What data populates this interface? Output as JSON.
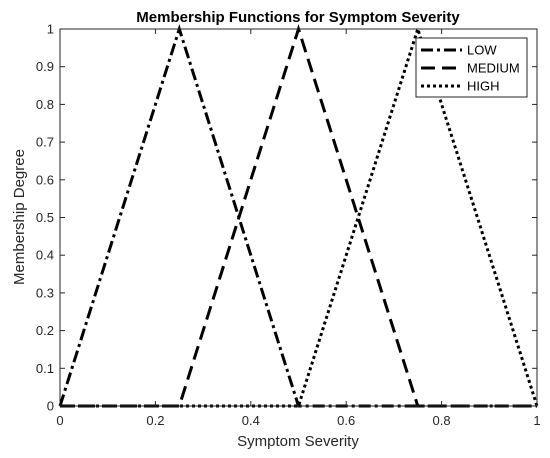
{
  "chart_data": {
    "type": "line",
    "title": "Membership Functions for Symptom Severity",
    "xlabel": "Symptom Severity",
    "ylabel": "Membership Degree",
    "xlim": [
      0,
      1
    ],
    "ylim": [
      0,
      1
    ],
    "x_ticks": [
      "0",
      "0.2",
      "0.4",
      "0.6",
      "0.8",
      "1"
    ],
    "y_ticks": [
      "0",
      "0.1",
      "0.2",
      "0.3",
      "0.4",
      "0.5",
      "0.6",
      "0.7",
      "0.8",
      "0.9",
      "1"
    ],
    "grid": false,
    "legend_position": "top-right",
    "series": [
      {
        "name": "LOW",
        "style": "dash-dot",
        "color": "#000000",
        "x": [
          0,
          0.25,
          0.5,
          1
        ],
        "y": [
          0,
          1,
          0,
          0
        ]
      },
      {
        "name": "MEDIUM",
        "style": "dashed",
        "color": "#000000",
        "x": [
          0,
          0.25,
          0.5,
          0.75,
          1
        ],
        "y": [
          0,
          0,
          1,
          0,
          0
        ]
      },
      {
        "name": "HIGH",
        "style": "dotted",
        "color": "#000000",
        "x": [
          0,
          0.5,
          0.75,
          1
        ],
        "y": [
          0,
          0,
          1,
          0
        ]
      }
    ]
  }
}
